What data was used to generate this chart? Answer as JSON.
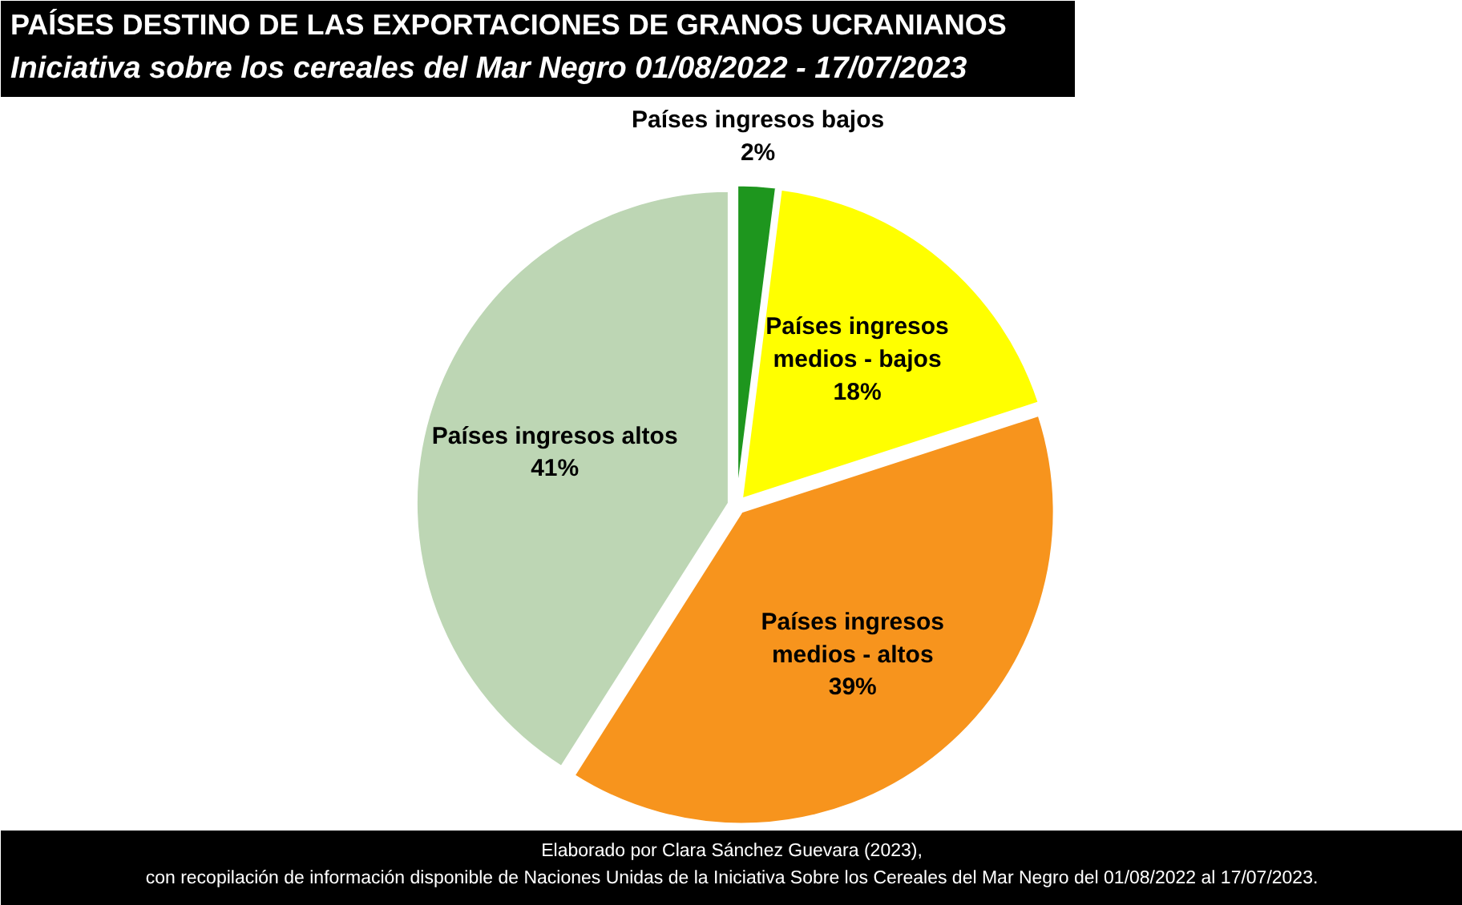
{
  "chart_data": {
    "type": "pie",
    "title": "PAÍSES DESTINO DE LAS EXPORTACIONES DE GRANOS UCRANIANOS",
    "subtitle": "Iniciativa sobre los cereales del Mar Negro 01/08/2022 - 17/07/2023",
    "categories": [
      "Países ingresos bajos",
      "Países ingresos medios - bajos",
      "Países ingresos medios - altos",
      "Países ingresos altos"
    ],
    "values": [
      2,
      18,
      39,
      41
    ],
    "value_labels": [
      "2%",
      "18%",
      "39%",
      "41%"
    ],
    "colors": [
      "#1e961e",
      "#ffff00",
      "#f7941d",
      "#bdd6b4"
    ],
    "annotations": [
      "Elaborado por Clara Sánchez Guevara (2023),",
      "con recopilación de información disponible de Naciones Unidas de la Iniciativa Sobre los Cereales del Mar Negro del 01/08/2022 al 17/07/2023."
    ]
  }
}
